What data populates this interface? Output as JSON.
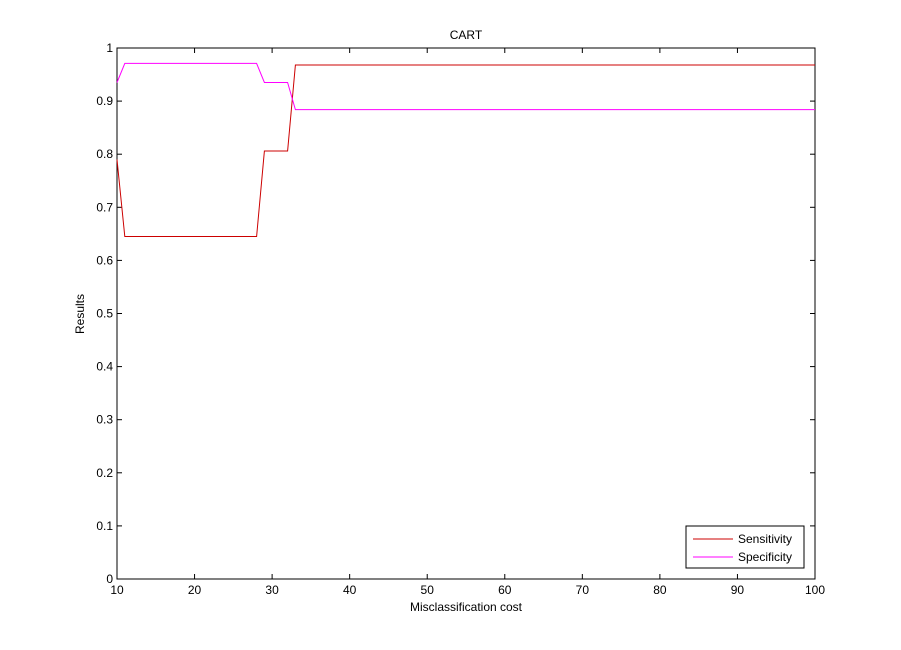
{
  "chart_data": {
    "type": "line",
    "title": "CART",
    "xlabel": "Misclassification cost",
    "ylabel": "Results",
    "xlim": [
      10,
      100
    ],
    "ylim": [
      0,
      1
    ],
    "xticks": [
      10,
      20,
      30,
      40,
      50,
      60,
      70,
      80,
      90,
      100
    ],
    "xtick_labels": [
      "10",
      "20",
      "30",
      "40",
      "50",
      "60",
      "70",
      "80",
      "90",
      "100"
    ],
    "yticks": [
      0,
      0.1,
      0.2,
      0.3,
      0.4,
      0.5,
      0.6,
      0.7,
      0.8,
      0.9,
      1
    ],
    "ytick_labels": [
      "0",
      "0.1",
      "0.2",
      "0.3",
      "0.4",
      "0.5",
      "0.6",
      "0.7",
      "0.8",
      "0.9",
      "1"
    ],
    "grid": false,
    "legend_position": "bottom-right",
    "series": [
      {
        "name": "Sensitivity",
        "color": "#cc0000",
        "x": [
          10,
          11,
          28,
          29,
          32,
          33,
          100
        ],
        "y": [
          0.79,
          0.645,
          0.645,
          0.806,
          0.806,
          0.968,
          0.968
        ]
      },
      {
        "name": "Specificity",
        "color": "#ff00ff",
        "x": [
          10,
          11,
          28,
          29,
          32,
          33,
          100
        ],
        "y": [
          0.935,
          0.971,
          0.971,
          0.935,
          0.935,
          0.884,
          0.884
        ]
      }
    ]
  }
}
